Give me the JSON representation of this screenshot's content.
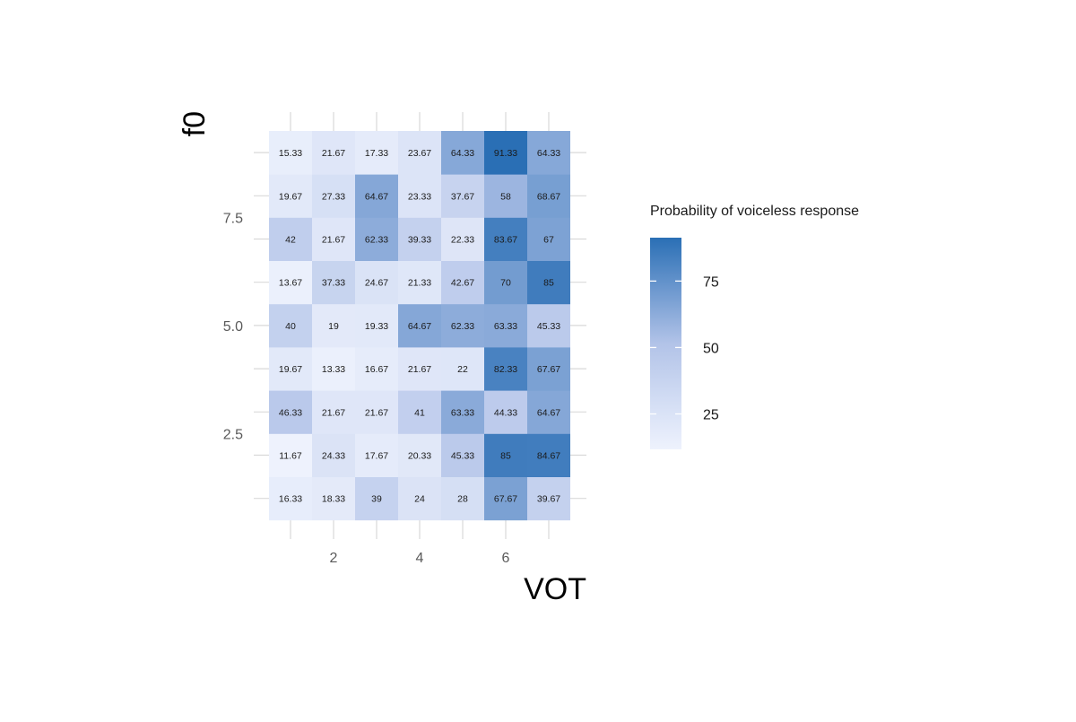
{
  "chart_data": {
    "type": "heatmap",
    "xlabel": "VOT",
    "ylabel": "f0",
    "x": [
      1,
      2,
      3,
      4,
      5,
      6,
      7
    ],
    "y": [
      1,
      2,
      3,
      4,
      5,
      6,
      7,
      8,
      9
    ],
    "x_ticks": [
      2,
      4,
      6
    ],
    "x_tick_labels": [
      "2",
      "4",
      "6"
    ],
    "y_ticks": [
      2.5,
      5.0,
      7.5
    ],
    "y_tick_labels": [
      "2.5",
      "5.0",
      "7.5"
    ],
    "values": [
      [
        16.33,
        18.33,
        39,
        24,
        28,
        67.67,
        39.67
      ],
      [
        11.67,
        24.33,
        17.67,
        20.33,
        45.33,
        85,
        84.67
      ],
      [
        46.33,
        21.67,
        21.67,
        41,
        63.33,
        44.33,
        64.67
      ],
      [
        19.67,
        13.33,
        16.67,
        21.67,
        22,
        82.33,
        67.67
      ],
      [
        40,
        19,
        19.33,
        64.67,
        62.33,
        63.33,
        45.33
      ],
      [
        13.67,
        37.33,
        24.67,
        21.33,
        42.67,
        70,
        85
      ],
      [
        42,
        21.67,
        62.33,
        39.33,
        22.33,
        83.67,
        67
      ],
      [
        19.67,
        27.33,
        64.67,
        23.33,
        37.67,
        58,
        68.67
      ],
      [
        15.33,
        21.67,
        17.33,
        23.67,
        64.33,
        91.33,
        64.33
      ]
    ],
    "cell_labels": [
      [
        "16.33",
        "18.33",
        "39",
        "24",
        "28",
        "67.67",
        "39.67"
      ],
      [
        "11.67",
        "24.33",
        "17.67",
        "20.33",
        "45.33",
        "85",
        "84.67"
      ],
      [
        "46.33",
        "21.67",
        "21.67",
        "41",
        "63.33",
        "44.33",
        "64.67"
      ],
      [
        "19.67",
        "13.33",
        "16.67",
        "21.67",
        "22",
        "82.33",
        "67.67"
      ],
      [
        "40",
        "19",
        "19.33",
        "64.67",
        "62.33",
        "63.33",
        "45.33"
      ],
      [
        "13.67",
        "37.33",
        "24.67",
        "21.33",
        "42.67",
        "70",
        "85"
      ],
      [
        "42",
        "21.67",
        "62.33",
        "39.33",
        "22.33",
        "83.67",
        "67"
      ],
      [
        "19.67",
        "27.33",
        "64.67",
        "23.33",
        "37.67",
        "58",
        "68.67"
      ],
      [
        "15.33",
        "21.67",
        "17.33",
        "23.67",
        "64.33",
        "91.33",
        "64.33"
      ]
    ],
    "legend": {
      "title": "Probability of voiceless response",
      "placement": "right",
      "breaks": [
        25,
        50,
        75
      ],
      "break_labels": [
        "25",
        "50",
        "75"
      ],
      "range": [
        11.67,
        91.33
      ]
    },
    "colors": {
      "low": "#eef2fd",
      "mid": "#b2c3e8",
      "high": "#2a6fb5"
    },
    "grid": true
  }
}
